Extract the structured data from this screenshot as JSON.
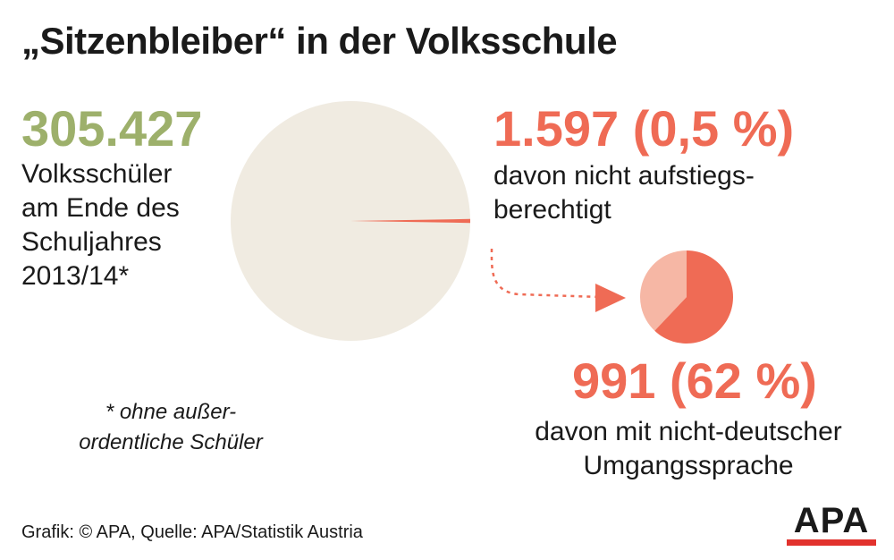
{
  "title": "„Sitzenbleiber“ in der Volksschule",
  "total": {
    "value": "305.427",
    "lines": [
      "Volksschüler",
      "am Ende des",
      "Schuljahres",
      "2013/14*"
    ]
  },
  "footnote": {
    "lines": [
      "* ohne außer-",
      "ordentliche Schüler"
    ]
  },
  "repeaters": {
    "value": "1.597 (0,5 %)",
    "lines": [
      "davon nicht aufstiegs-",
      "berechtigt"
    ]
  },
  "non_german": {
    "value": "991 (62 %)",
    "lines": [
      "davon mit nicht-deutscher",
      "Umgangssprache"
    ]
  },
  "source": "Grafik: © APA, Quelle: APA/Statistik Austria",
  "logo": "APA",
  "colors": {
    "green": "#9db06b",
    "accent": "#ef6b55",
    "accent_light": "#f6b7a5",
    "pie_bg": "#f0ebe1",
    "text": "#1a1a1a",
    "logo_red": "#e2322d"
  },
  "chart_data": [
    {
      "type": "pie",
      "categories": [
        "nicht aufstiegsberechtigt",
        "aufstiegsberechtigt"
      ],
      "values": [
        1597,
        303830
      ],
      "percent": [
        0.5,
        99.5
      ],
      "total": 305427
    },
    {
      "type": "pie",
      "categories": [
        "nicht-deutsche Umgangssprache",
        "deutsche Umgangssprache"
      ],
      "values": [
        991,
        606
      ],
      "percent": [
        62,
        38
      ],
      "total": 1597
    }
  ]
}
